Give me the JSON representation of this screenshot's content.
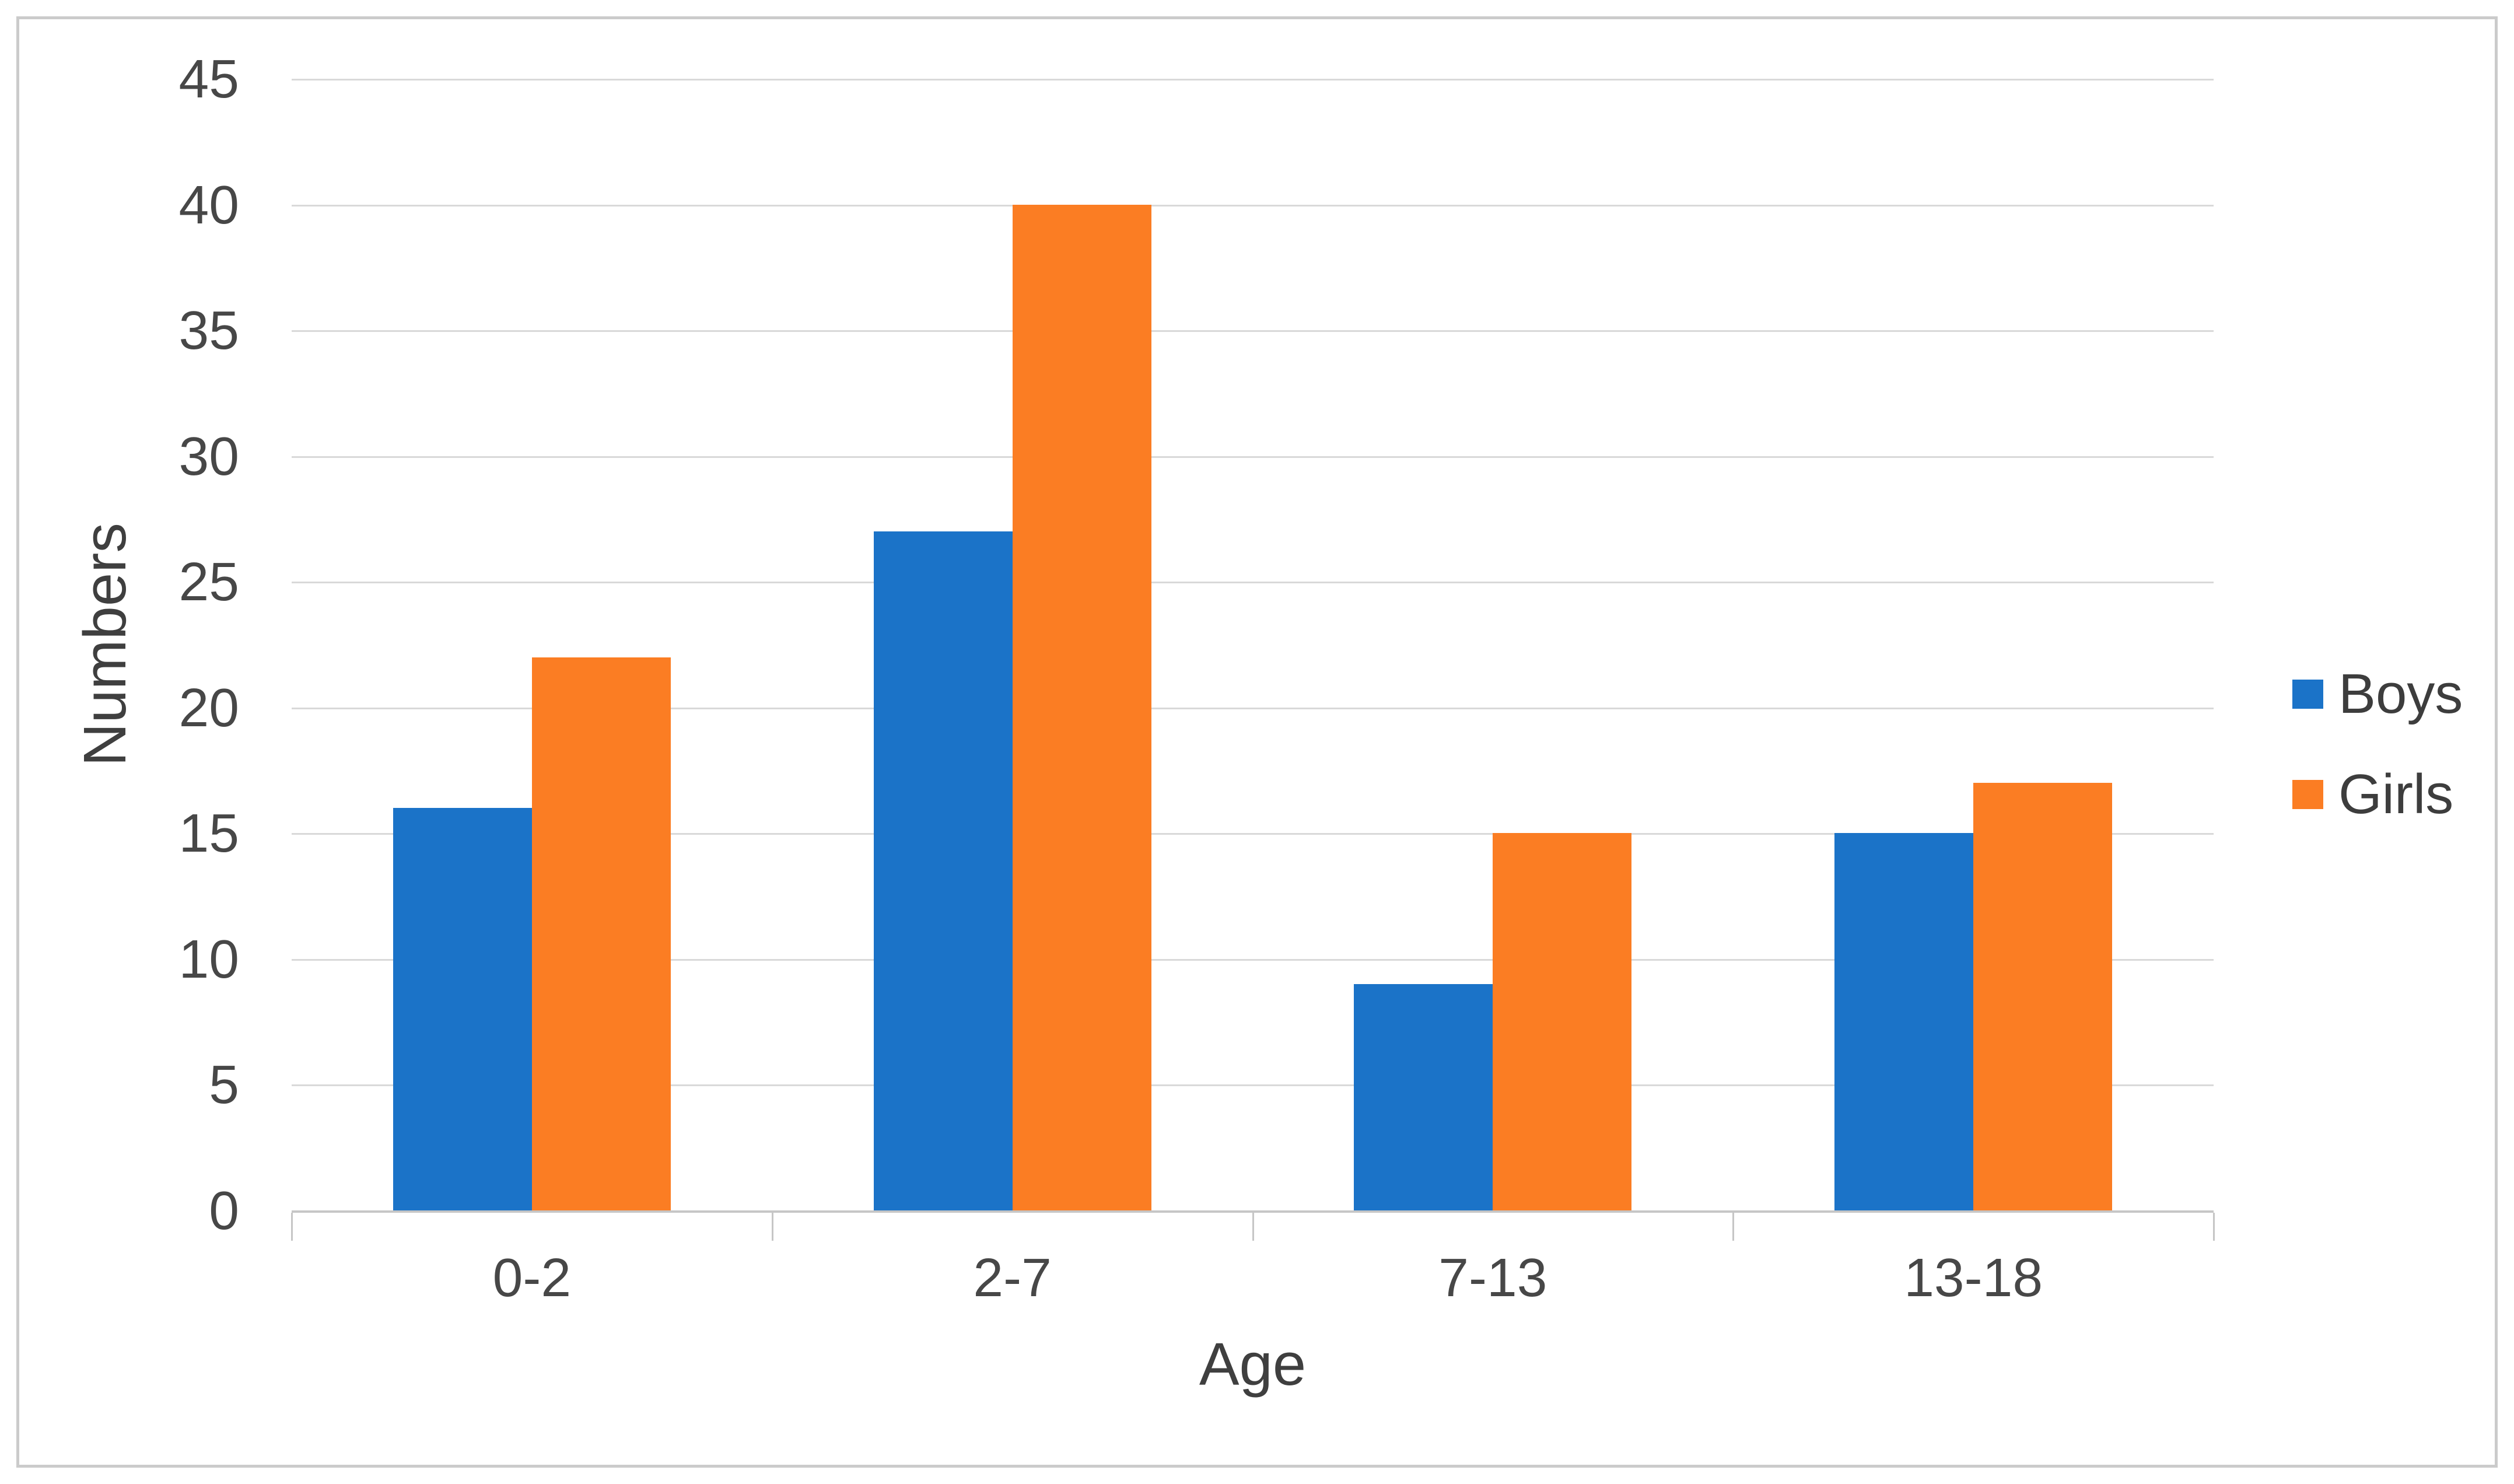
{
  "chart_data": {
    "type": "bar",
    "title": "",
    "categories": [
      "0-2",
      "2-7",
      "7-13",
      "13-18"
    ],
    "series": [
      {
        "name": "Boys",
        "color": "#1b73c8",
        "values": [
          16,
          27,
          9,
          15
        ]
      },
      {
        "name": "Girls",
        "color": "#fb7d23",
        "values": [
          22,
          40,
          15,
          17
        ]
      }
    ],
    "xlabel": "Age",
    "ylabel": "Numbers",
    "ylim": [
      0,
      45
    ],
    "ytick_step": 5,
    "yticks": [
      0,
      5,
      10,
      15,
      20,
      25,
      30,
      35,
      40,
      45
    ],
    "grid": true,
    "legend_position": "right",
    "colors": {
      "gridline": "#d9d9d9",
      "axis_line": "#c6c6c6",
      "tick_text": "#474747",
      "axis_title_text": "#3f3f3f",
      "legend_text": "#3d3d3d",
      "frame_border": "#cbcbcb",
      "background": "#ffffff"
    }
  }
}
